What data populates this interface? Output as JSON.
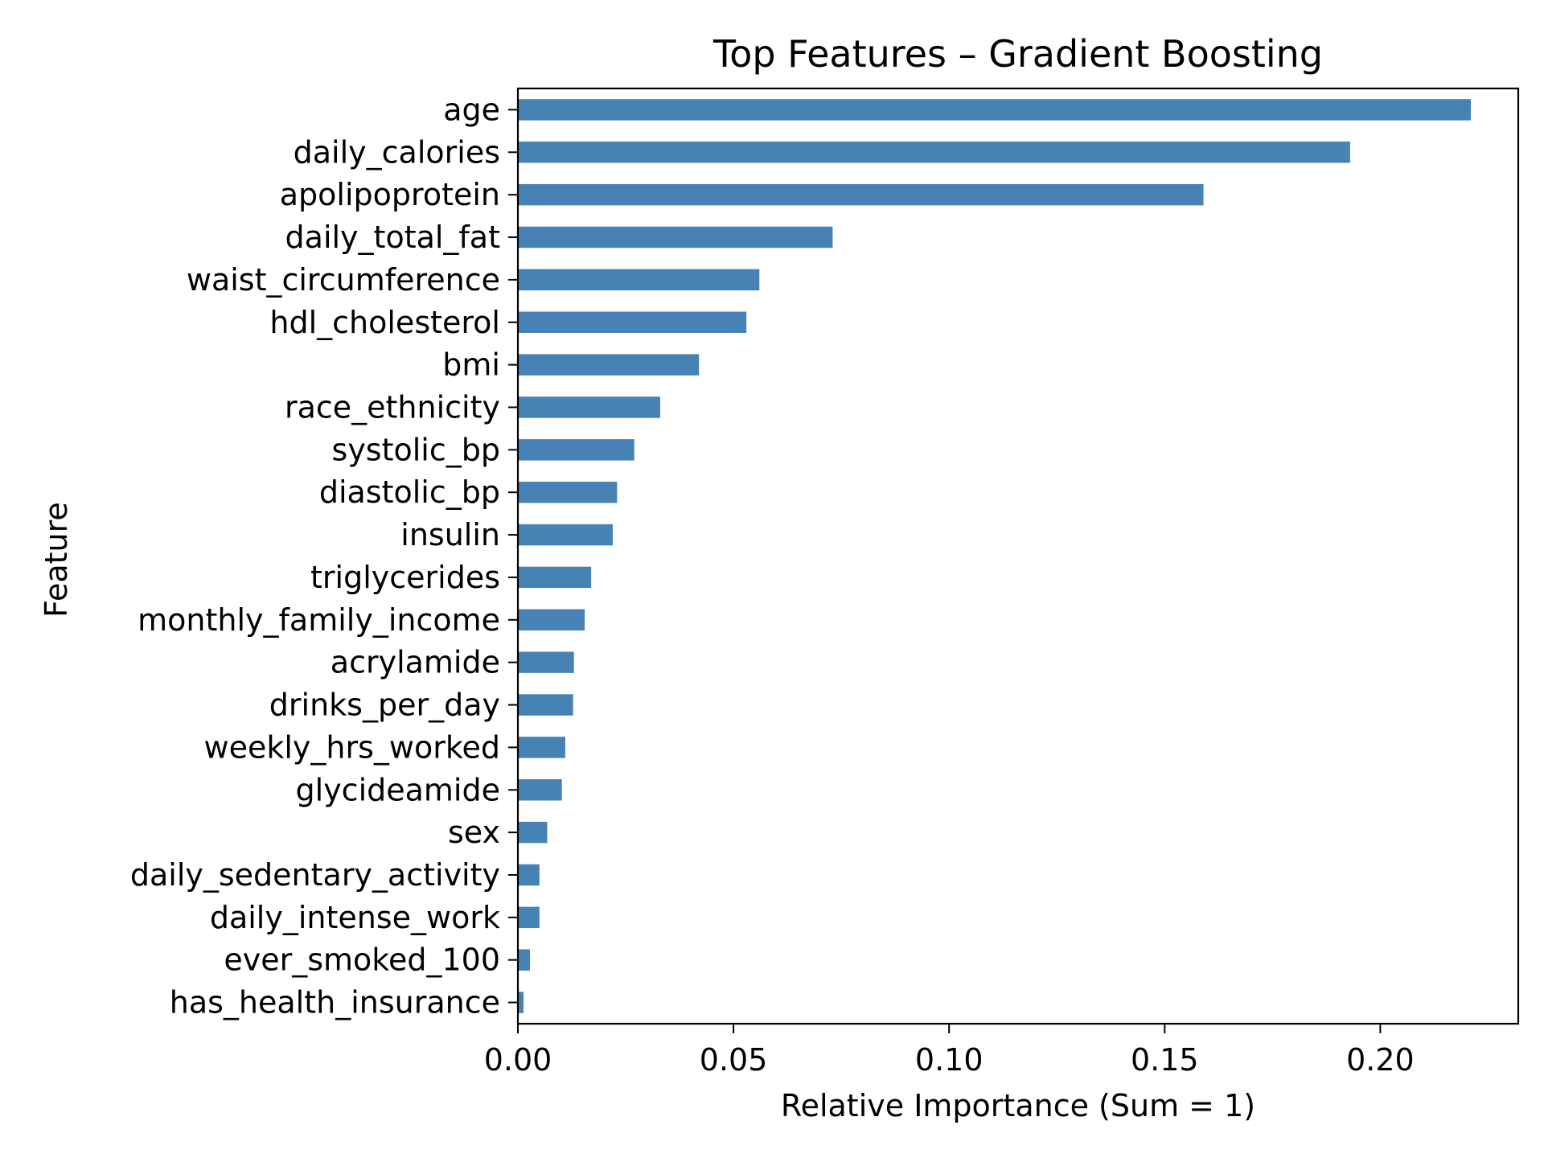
{
  "chart_data": {
    "type": "bar",
    "orientation": "horizontal",
    "title": "Top Features – Gradient Boosting",
    "xlabel": "Relative Importance (Sum = 1)",
    "ylabel": "Feature",
    "xlim": [
      0,
      0.232
    ],
    "xticks": [
      "0.00",
      "0.05",
      "0.10",
      "0.15",
      "0.20"
    ],
    "grid": false,
    "bar_color": "#4682b4",
    "categories": [
      "age",
      "daily_calories",
      "apolipoprotein",
      "daily_total_fat",
      "waist_circumference",
      "hdl_cholesterol",
      "bmi",
      "race_ethnicity",
      "systolic_bp",
      "diastolic_bp",
      "insulin",
      "triglycerides",
      "monthly_family_income",
      "acrylamide",
      "drinks_per_day",
      "weekly_hrs_worked",
      "glycideamide",
      "sex",
      "daily_sedentary_activity",
      "daily_intense_work",
      "ever_smoked_100",
      "has_health_insurance"
    ],
    "values": [
      0.221,
      0.193,
      0.159,
      0.073,
      0.056,
      0.053,
      0.042,
      0.033,
      0.027,
      0.023,
      0.022,
      0.017,
      0.0155,
      0.013,
      0.0128,
      0.011,
      0.0102,
      0.0068,
      0.005,
      0.005,
      0.0028,
      0.0013
    ]
  }
}
